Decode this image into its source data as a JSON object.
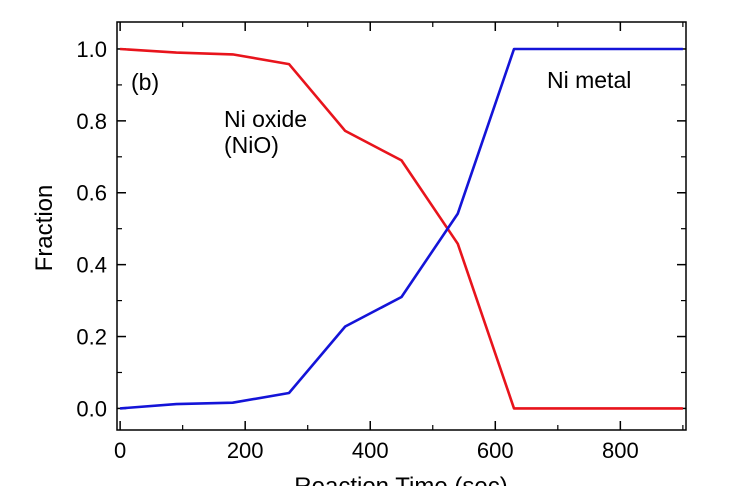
{
  "chart_data": {
    "type": "line",
    "panel_label": "(b)",
    "xlabel": "Reaction Time (sec)",
    "ylabel": "Fraction",
    "xlim": [
      -5,
      905
    ],
    "ylim": [
      -0.06,
      1.075
    ],
    "x_ticks": [
      0,
      200,
      400,
      600,
      800
    ],
    "x_tick_labels": [
      "0",
      "200",
      "400",
      "600",
      "800"
    ],
    "y_ticks": [
      0.0,
      0.2,
      0.4,
      0.6,
      0.8,
      1.0
    ],
    "y_tick_labels": [
      "0.0",
      "0.2",
      "0.4",
      "0.6",
      "0.8",
      "1.0"
    ],
    "x": [
      0,
      90,
      180,
      270,
      360,
      450,
      540,
      630,
      720,
      810,
      900
    ],
    "series": [
      {
        "name": "Ni oxide (NiO)",
        "color": "#e8141c",
        "values": [
          1.0,
          0.99,
          0.985,
          0.958,
          0.772,
          0.69,
          0.458,
          0.0,
          0.0,
          0.0,
          0.0
        ]
      },
      {
        "name": "Ni metal",
        "color": "#1414d8",
        "values": [
          0.0,
          0.012,
          0.016,
          0.043,
          0.228,
          0.31,
          0.542,
          1.0,
          1.0,
          1.0,
          1.0
        ]
      }
    ],
    "annotations": [
      {
        "text": "Ni oxide",
        "series": 0
      },
      {
        "text": "(NiO)",
        "series": 0
      },
      {
        "text": "Ni metal",
        "series": 1
      }
    ],
    "grid": false,
    "legend": "none"
  }
}
